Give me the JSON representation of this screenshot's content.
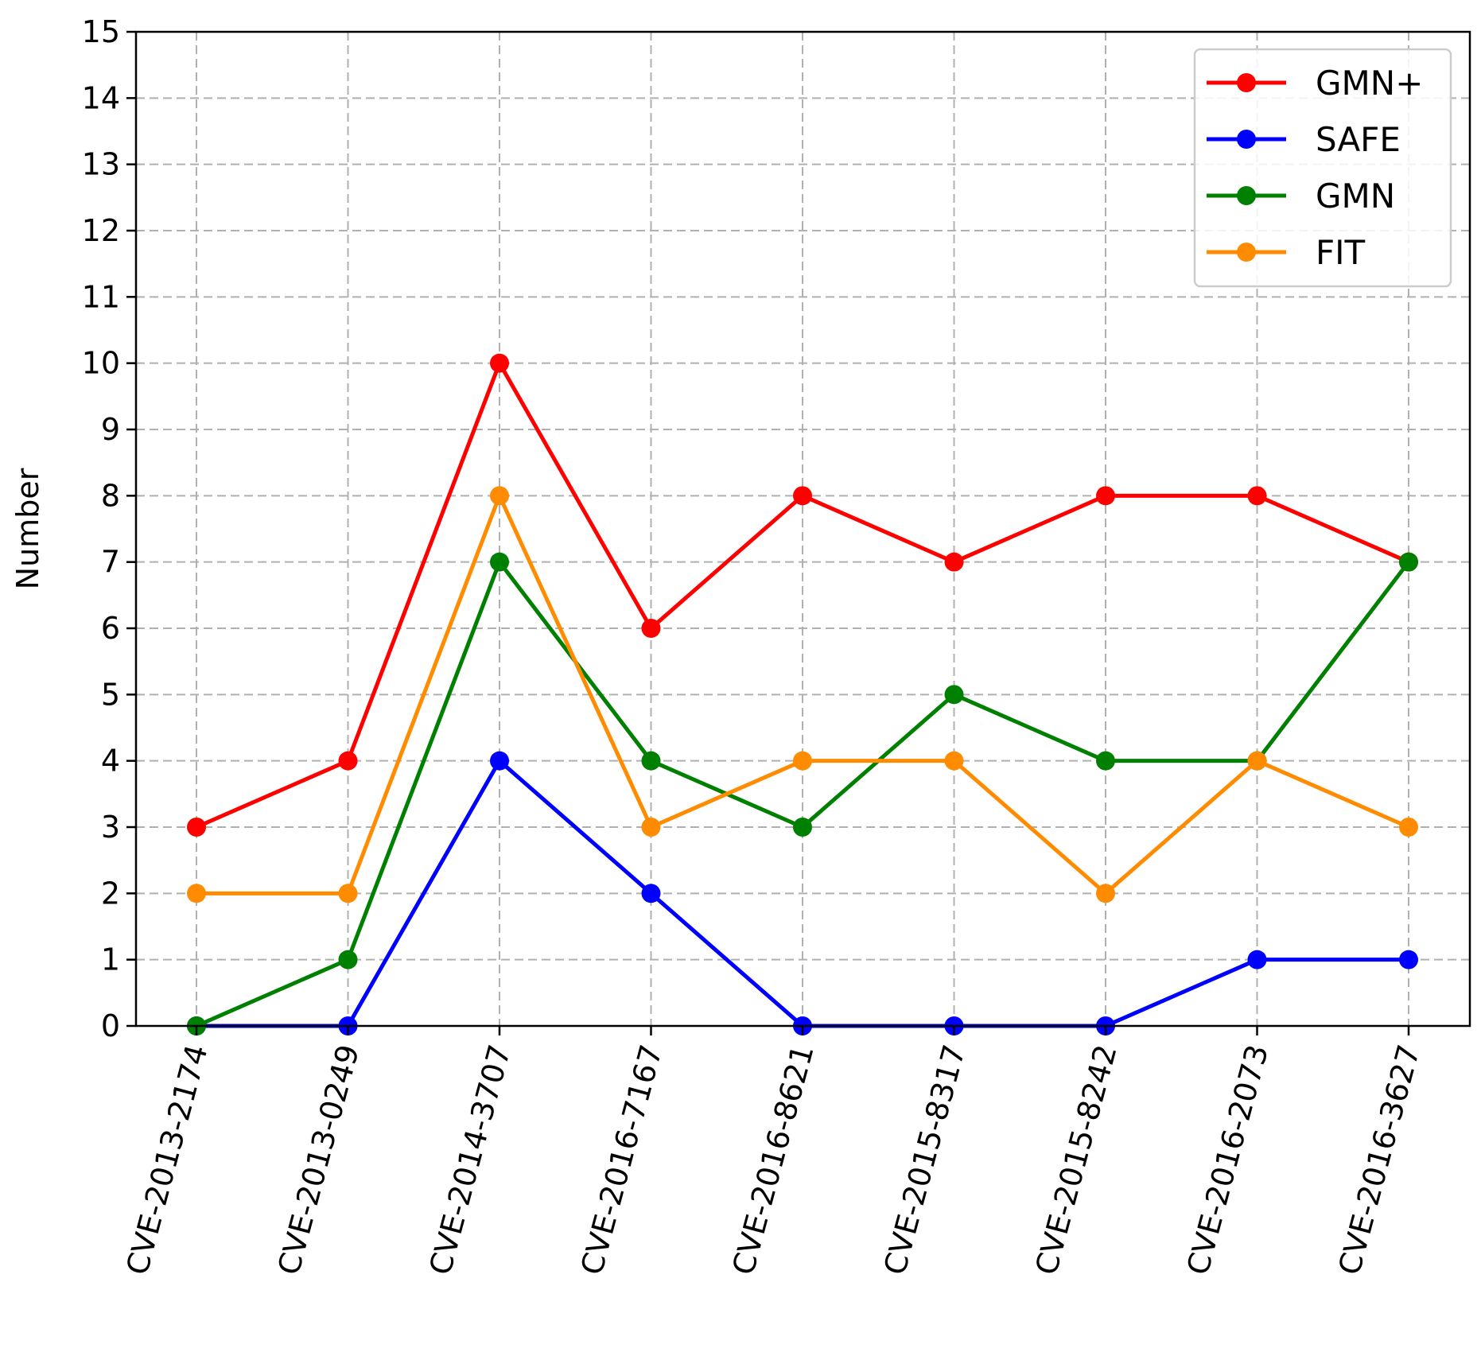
{
  "chart_data": {
    "type": "line",
    "title": "",
    "xlabel": "",
    "ylabel": "Number",
    "ylim": [
      0,
      15
    ],
    "yticks": [
      0,
      1,
      2,
      3,
      4,
      5,
      6,
      7,
      8,
      9,
      10,
      11,
      12,
      13,
      14,
      15
    ],
    "grid": true,
    "legend_position": "top-right",
    "categories": [
      "CVE-2013-2174",
      "CVE-2013-0249",
      "CVE-2014-3707",
      "CVE-2016-7167",
      "CVE-2016-8621",
      "CVE-2015-8317",
      "CVE-2015-8242",
      "CVE-2016-2073",
      "CVE-2016-3627"
    ],
    "series": [
      {
        "name": "GMN+",
        "color": "#ff0000",
        "values": [
          3,
          4,
          10,
          6,
          8,
          7,
          8,
          8,
          7
        ]
      },
      {
        "name": "SAFE",
        "color": "#0000ff",
        "values": [
          0,
          0,
          4,
          2,
          0,
          0,
          0,
          1,
          1
        ]
      },
      {
        "name": "GMN",
        "color": "#008000",
        "values": [
          0,
          1,
          7,
          4,
          3,
          5,
          4,
          4,
          7
        ]
      },
      {
        "name": "FIT",
        "color": "#ff8c00",
        "values": [
          2,
          2,
          8,
          3,
          4,
          4,
          2,
          4,
          3
        ]
      }
    ]
  }
}
